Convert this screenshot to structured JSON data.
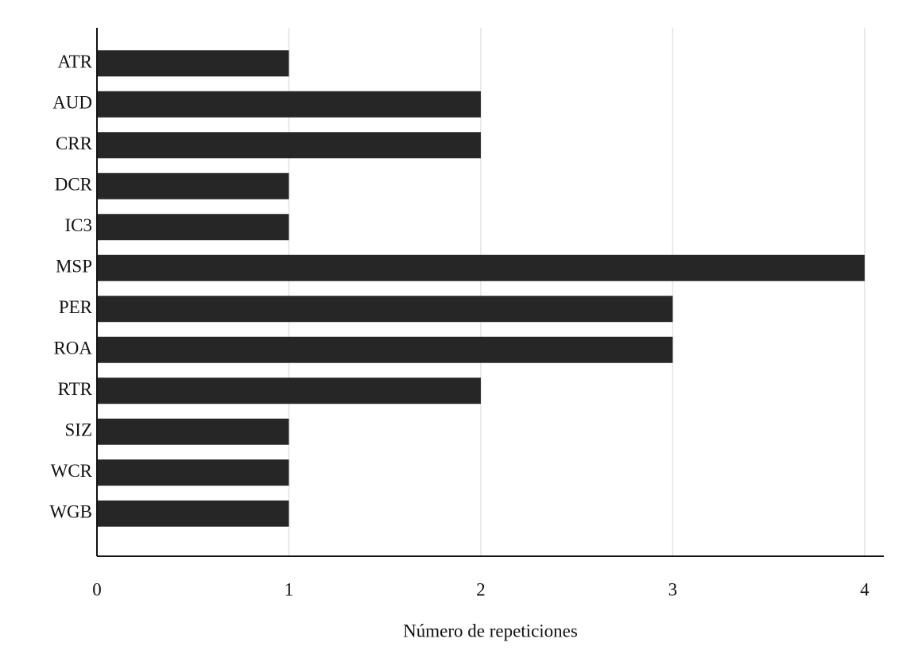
{
  "chart_data": {
    "type": "barh",
    "categories": [
      "ATR",
      "AUD",
      "CRR",
      "DCR",
      "IC3",
      "MSP",
      "PER",
      "ROA",
      "RTR",
      "SIZ",
      "WCR",
      "WGB"
    ],
    "values": [
      1,
      2,
      2,
      1,
      1,
      4,
      3,
      3,
      2,
      1,
      1,
      1
    ],
    "color": "#262626",
    "x_label": "Número de repeticiones",
    "xlim": [
      0,
      4.1
    ],
    "xticks": [
      0,
      1,
      2,
      3,
      4
    ],
    "grid": true
  }
}
